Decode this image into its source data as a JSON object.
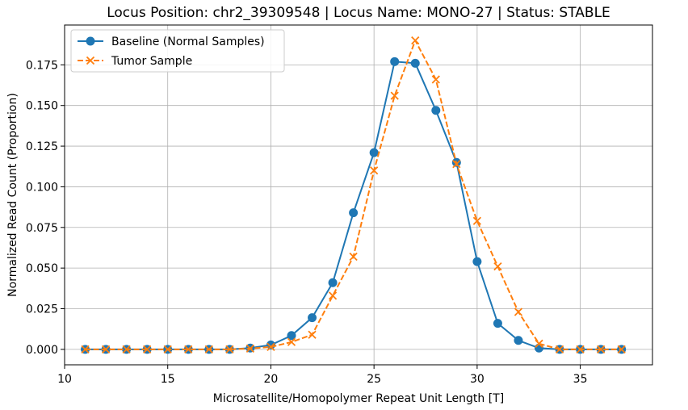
{
  "chart_data": {
    "type": "line",
    "title": "Locus Position: chr2_39309548 | Locus Name: MONO-27 | Status: STABLE",
    "xlabel": "Microsatellite/Homopolymer Repeat Unit Length [T]",
    "ylabel": "Normalized Read Count (Proportion)",
    "xlim": [
      10,
      38.5
    ],
    "ylim": [
      -0.0095,
      0.1995
    ],
    "xticks": [
      10,
      15,
      20,
      25,
      30,
      35
    ],
    "yticks": [
      0.0,
      0.025,
      0.05,
      0.075,
      0.1,
      0.125,
      0.15,
      0.175
    ],
    "xtick_labels": [
      "10",
      "15",
      "20",
      "25",
      "30",
      "35"
    ],
    "ytick_labels": [
      "0.000",
      "0.025",
      "0.050",
      "0.075",
      "0.100",
      "0.125",
      "0.150",
      "0.175"
    ],
    "grid": true,
    "legend_position": "upper-left",
    "x": [
      11,
      12,
      13,
      14,
      15,
      16,
      17,
      18,
      19,
      20,
      21,
      22,
      23,
      24,
      25,
      26,
      27,
      28,
      29,
      30,
      31,
      32,
      33,
      34,
      35,
      36,
      37
    ],
    "series": [
      {
        "name": "Baseline (Normal Samples)",
        "color": "#1f77b4",
        "marker": "circle",
        "linestyle": "solid",
        "values": [
          0.0,
          0.0,
          0.0,
          0.0,
          0.0,
          0.0,
          0.0,
          0.0,
          0.0008,
          0.0027,
          0.0085,
          0.0195,
          0.041,
          0.084,
          0.121,
          0.177,
          0.176,
          0.147,
          0.115,
          0.054,
          0.016,
          0.0055,
          0.0008,
          0.0,
          0.0,
          0.0,
          0.0
        ]
      },
      {
        "name": "Tumor Sample",
        "color": "#ff7f0e",
        "marker": "x",
        "linestyle": "dashed",
        "values": [
          0.0,
          0.0,
          0.0,
          0.0,
          0.0,
          0.0,
          0.0,
          0.0,
          0.0005,
          0.0015,
          0.0045,
          0.009,
          0.033,
          0.057,
          0.11,
          0.156,
          0.19,
          0.166,
          0.114,
          0.079,
          0.051,
          0.023,
          0.0035,
          0.0,
          0.0,
          0.0,
          0.0
        ]
      }
    ]
  }
}
